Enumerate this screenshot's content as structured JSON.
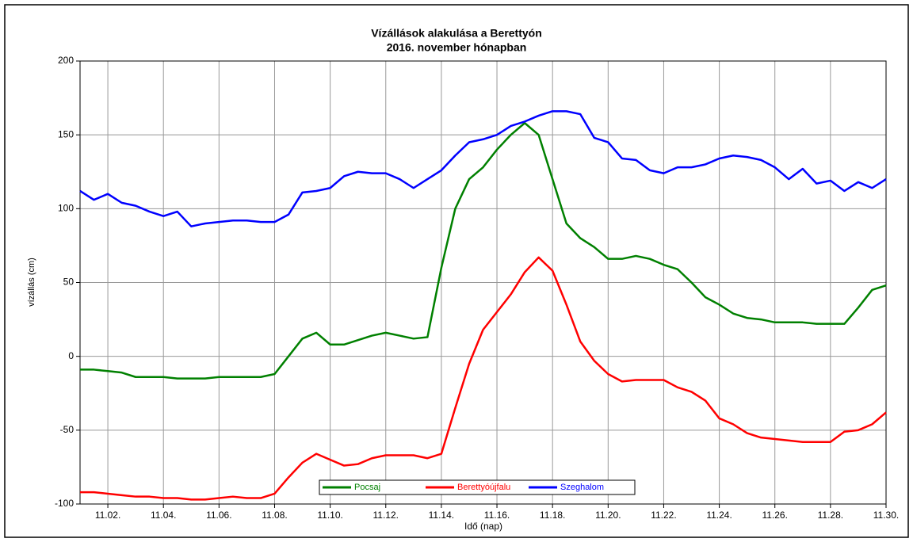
{
  "chart_data": {
    "type": "line",
    "title": "Vízállások alakulása a Berettyón",
    "subtitle": "2016. november hónapban",
    "xlabel": "Idő (nap)",
    "ylabel": "vízállás (cm)",
    "x": [
      1,
      1.5,
      2,
      2.5,
      3,
      3.5,
      4,
      4.5,
      5,
      5.5,
      6,
      6.5,
      7,
      7.5,
      8,
      8.5,
      9,
      9.5,
      10,
      10.5,
      11,
      11.5,
      12,
      12.5,
      13,
      13.5,
      14,
      14.5,
      15,
      15.5,
      16,
      16.5,
      17,
      17.5,
      18,
      18.5,
      19,
      19.5,
      20,
      20.5,
      21,
      21.5,
      22,
      22.5,
      23,
      23.5,
      24,
      24.5,
      25,
      25.5,
      26,
      26.5,
      27,
      27.5,
      28,
      28.5,
      29,
      29.5,
      30
    ],
    "series": [
      {
        "name": "Pocsaj",
        "color": "#008000",
        "values": [
          -9,
          -9,
          -10,
          -11,
          -14,
          -14,
          -14,
          -15,
          -15,
          -15,
          -14,
          -14,
          -14,
          -14,
          -12,
          0,
          12,
          16,
          8,
          8,
          11,
          14,
          16,
          14,
          12,
          13,
          60,
          100,
          120,
          128,
          140,
          150,
          158,
          150,
          120,
          90,
          80,
          74,
          66,
          66,
          68,
          66,
          62,
          59,
          50,
          40,
          35,
          29,
          26,
          25,
          23,
          23,
          23,
          22,
          22,
          22,
          33,
          45,
          48
        ]
      },
      {
        "name": "Berettyóújfalu",
        "color": "#ff0000",
        "values": [
          -92,
          -92,
          -93,
          -94,
          -95,
          -95,
          -96,
          -96,
          -97,
          -97,
          -96,
          -95,
          -96,
          -96,
          -93,
          -82,
          -72,
          -66,
          -70,
          -74,
          -73,
          -69,
          -67,
          -67,
          -67,
          -69,
          -66,
          -35,
          -5,
          18,
          30,
          42,
          57,
          67,
          58,
          35,
          10,
          -3,
          -12,
          -17,
          -16,
          -16,
          -16,
          -21,
          -24,
          -30,
          -42,
          -46,
          -52,
          -55,
          -56,
          -57,
          -58,
          -58,
          -58,
          -51,
          -50,
          -46,
          -38
        ]
      },
      {
        "name": "Szeghalom",
        "color": "#0000ff",
        "values": [
          112,
          106,
          110,
          104,
          102,
          98,
          95,
          98,
          88,
          90,
          91,
          92,
          92,
          91,
          91,
          96,
          111,
          112,
          114,
          122,
          125,
          124,
          124,
          120,
          114,
          120,
          126,
          136,
          145,
          147,
          150,
          156,
          159,
          163,
          166,
          166,
          164,
          148,
          145,
          134,
          133,
          126,
          124,
          128,
          128,
          130,
          134,
          136,
          135,
          133,
          128,
          120,
          127,
          117,
          119,
          112,
          118,
          114,
          120
        ]
      }
    ],
    "xlim": [
      1,
      30
    ],
    "xticks": [
      {
        "value": 2,
        "label": "11.02."
      },
      {
        "value": 4,
        "label": "11.04."
      },
      {
        "value": 6,
        "label": "11.06."
      },
      {
        "value": 8,
        "label": "11.08."
      },
      {
        "value": 10,
        "label": "11.10."
      },
      {
        "value": 12,
        "label": "11.12."
      },
      {
        "value": 14,
        "label": "11.14."
      },
      {
        "value": 16,
        "label": "11.16."
      },
      {
        "value": 18,
        "label": "11.18."
      },
      {
        "value": 20,
        "label": "11.20."
      },
      {
        "value": 22,
        "label": "11.22."
      },
      {
        "value": 24,
        "label": "11.24."
      },
      {
        "value": 26,
        "label": "11.26."
      },
      {
        "value": 28,
        "label": "11.28."
      },
      {
        "value": 30,
        "label": "11.30."
      }
    ],
    "ylim": [
      -100,
      200
    ],
    "yticks": [
      -100,
      -50,
      0,
      50,
      100,
      150,
      200
    ],
    "grid": true,
    "legend": "bottom"
  }
}
